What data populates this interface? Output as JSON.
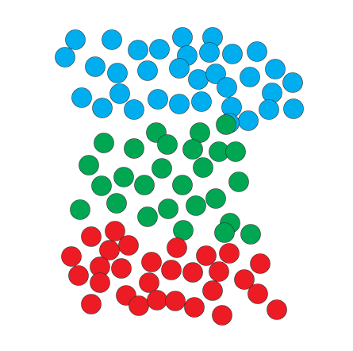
{
  "colors": {
    "blue": "#00AEEF",
    "green": "#00A651",
    "red": "#ED1C24",
    "outline": "#2a2a2a",
    "background": "#ffffff"
  },
  "groups": [
    {
      "name": "blue",
      "color": "#00AEEF",
      "count": 40
    },
    {
      "name": "green",
      "color": "#00A651",
      "count": 30
    },
    {
      "name": "red",
      "color": "#ED1C24",
      "count": 31
    }
  ]
}
